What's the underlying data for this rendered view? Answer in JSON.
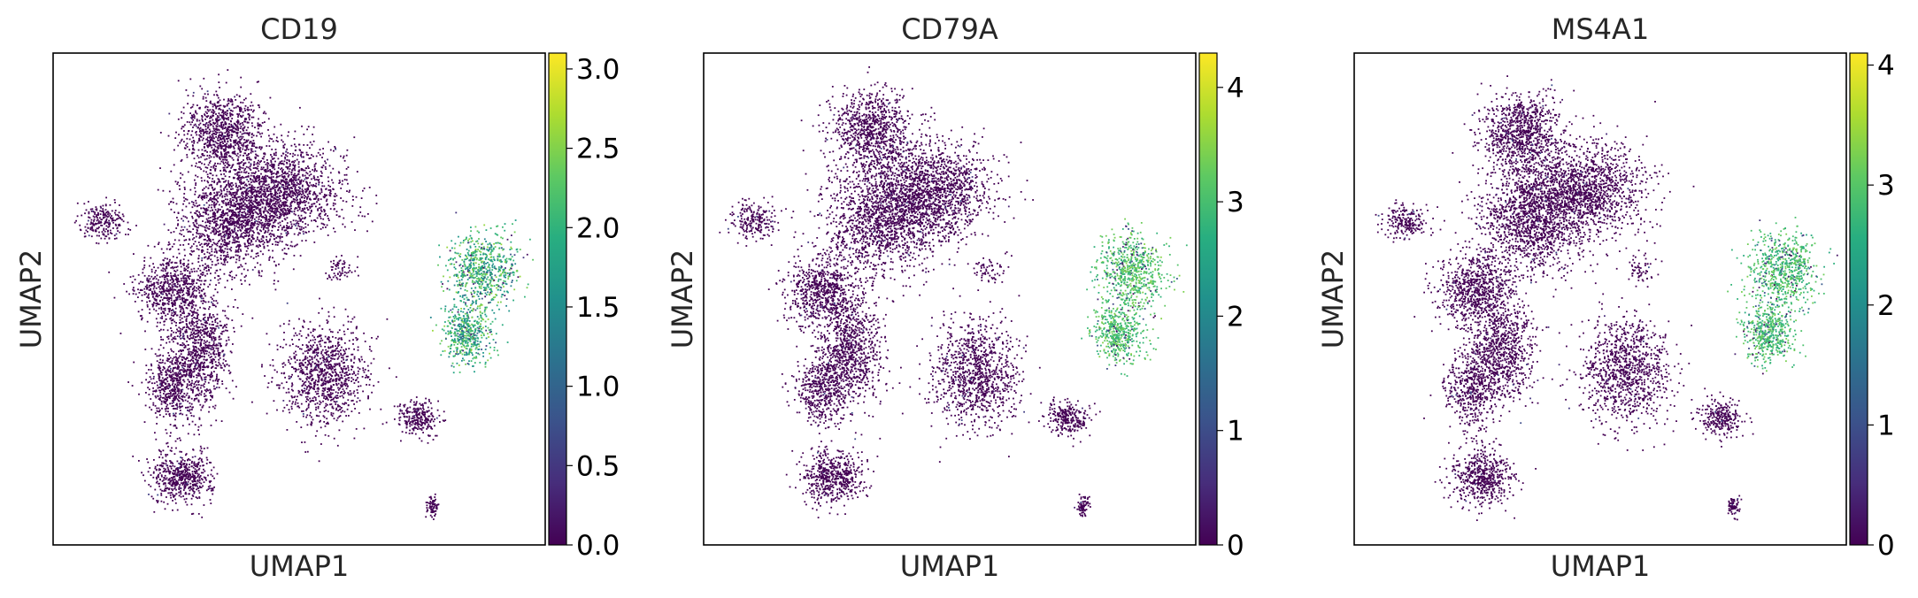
{
  "chart_data": [
    {
      "type": "scatter",
      "title": "CD19",
      "xlabel": "UMAP1",
      "ylabel": "UMAP2",
      "colormap": "viridis",
      "colorbar": {
        "vmin": 0.0,
        "vmax": 3.1,
        "ticks": [
          0.0,
          0.5,
          1.0,
          1.5,
          2.0,
          2.5,
          3.0
        ],
        "tick_labels": [
          "0.0",
          "0.5",
          "1.0",
          "1.5",
          "2.0",
          "2.5",
          "3.0"
        ]
      },
      "b_cell_cluster_level": [
        0.45,
        0.85
      ],
      "other_clusters_level": 0.0
    },
    {
      "type": "scatter",
      "title": "CD79A",
      "xlabel": "UMAP1",
      "ylabel": "UMAP2",
      "colormap": "viridis",
      "colorbar": {
        "vmin": 0.0,
        "vmax": 4.3,
        "ticks": [
          0,
          1,
          2,
          3,
          4
        ],
        "tick_labels": [
          "0",
          "1",
          "2",
          "3",
          "4"
        ]
      },
      "b_cell_cluster_level": [
        0.62,
        0.82
      ],
      "other_clusters_level": 0.0
    },
    {
      "type": "scatter",
      "title": "MS4A1",
      "xlabel": "UMAP1",
      "ylabel": "UMAP2",
      "colormap": "viridis",
      "colorbar": {
        "vmin": 0.0,
        "vmax": 4.1,
        "ticks": [
          0,
          1,
          2,
          3,
          4
        ],
        "tick_labels": [
          "0",
          "1",
          "2",
          "3",
          "4"
        ]
      },
      "b_cell_cluster_level": [
        0.6,
        0.8
      ],
      "other_clusters_level": 0.0
    }
  ],
  "colors": {
    "viridis_low": "#440154",
    "viridis_mid": "#21918c",
    "viridis_high": "#fde725",
    "axis": "#000000",
    "text": "#262626"
  }
}
